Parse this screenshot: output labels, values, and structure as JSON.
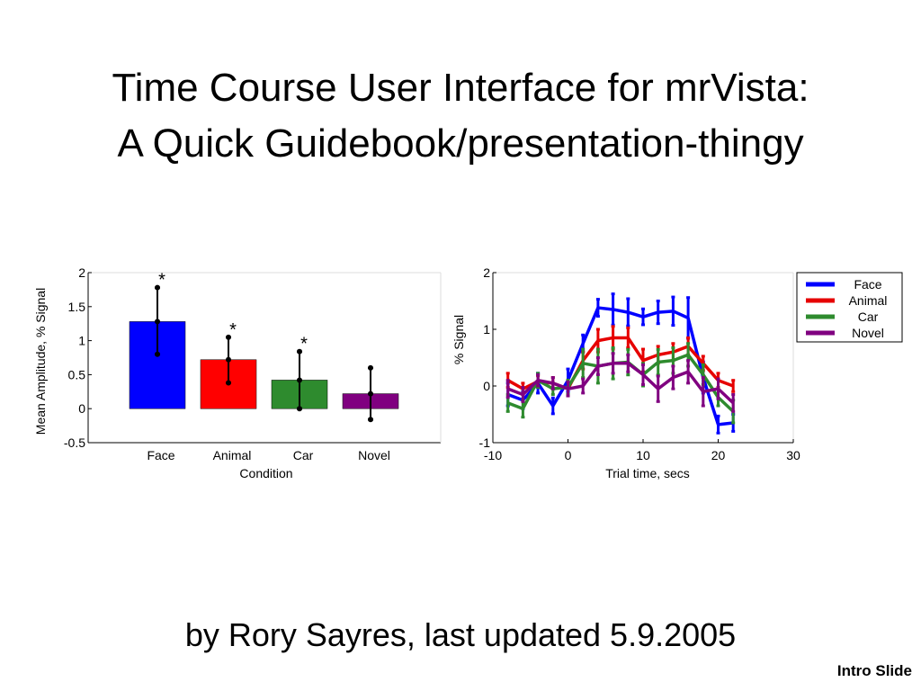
{
  "slide": {
    "title_line_1": "Time Course User Interface for mrVista:",
    "title_line_2": "A Quick Guidebook/presentation-thingy",
    "byline": "by Rory Sayres, last updated 5.9.2005",
    "label": "Intro Slide"
  },
  "chart_data": [
    {
      "type": "bar",
      "title": "",
      "xlabel": "Condition",
      "ylabel": "Mean Amplitude, % Signal",
      "ylim": [
        -0.5,
        2
      ],
      "yticks": [
        "2",
        "1.5",
        "1",
        "0.5",
        "0",
        "-0.5"
      ],
      "categories": [
        "Face",
        "Animal",
        "Car",
        "Novel"
      ],
      "values": [
        1.28,
        0.72,
        0.42,
        0.22
      ],
      "error_low": [
        0.8,
        0.38,
        0.0,
        -0.16
      ],
      "error_high": [
        1.78,
        1.05,
        0.84,
        0.6
      ],
      "significance": [
        "*",
        "*",
        "*",
        ""
      ],
      "colors": [
        "#0000ff",
        "#ff0000",
        "#2e8b2e",
        "#800080"
      ],
      "grid": false
    },
    {
      "type": "line",
      "title": "",
      "xlabel": "Trial time, secs",
      "ylabel": "% Signal",
      "xlim": [
        -10,
        30
      ],
      "ylim": [
        -1,
        2
      ],
      "xticks": [
        "-10",
        "0",
        "10",
        "20",
        "30"
      ],
      "yticks": [
        "2",
        "1",
        "0",
        "-1"
      ],
      "legend_position": "top-right",
      "x": [
        -8,
        -6,
        -4,
        -2,
        0,
        2,
        4,
        6,
        8,
        10,
        12,
        14,
        16,
        18,
        20,
        22
      ],
      "series": [
        {
          "name": "Face",
          "color": "#0000ff",
          "values": [
            -0.15,
            -0.25,
            0.05,
            -0.35,
            0.1,
            0.75,
            1.38,
            1.35,
            1.3,
            1.22,
            1.3,
            1.32,
            1.2,
            0.15,
            -0.68,
            -0.65
          ],
          "err": [
            0.4,
            0.3,
            0.35,
            0.28,
            0.4,
            0.3,
            0.3,
            0.55,
            0.48,
            0.28,
            0.4,
            0.5,
            0.72,
            0.55,
            0.3,
            0.3
          ]
        },
        {
          "name": "Animal",
          "color": "#e60000",
          "values": [
            0.1,
            -0.05,
            0.08,
            0.05,
            -0.05,
            0.45,
            0.8,
            0.85,
            0.85,
            0.45,
            0.55,
            0.6,
            0.7,
            0.4,
            0.1,
            0.0
          ],
          "err": [
            0.25,
            0.2,
            0.2,
            0.2,
            0.25,
            0.3,
            0.4,
            0.4,
            0.35,
            0.4,
            0.3,
            0.3,
            0.3,
            0.25,
            0.25,
            0.2
          ]
        },
        {
          "name": "Car",
          "color": "#2e8b2e",
          "values": [
            -0.3,
            -0.4,
            0.1,
            -0.05,
            -0.02,
            0.4,
            0.35,
            0.4,
            0.42,
            0.2,
            0.42,
            0.45,
            0.55,
            0.2,
            -0.2,
            -0.45
          ],
          "err": [
            0.3,
            0.3,
            0.25,
            0.2,
            0.25,
            0.5,
            0.6,
            0.55,
            0.45,
            0.4,
            0.45,
            0.45,
            0.4,
            0.35,
            0.3,
            0.4
          ]
        },
        {
          "name": "Novel",
          "color": "#800080",
          "values": [
            -0.05,
            -0.15,
            0.1,
            0.05,
            -0.05,
            0.0,
            0.35,
            0.4,
            0.4,
            0.2,
            -0.05,
            0.15,
            0.25,
            -0.1,
            -0.05,
            -0.3
          ],
          "err": [
            0.3,
            0.25,
            0.2,
            0.2,
            0.25,
            0.25,
            0.3,
            0.35,
            0.3,
            0.35,
            0.45,
            0.4,
            0.4,
            0.5,
            0.35,
            0.3
          ]
        }
      ],
      "grid": false
    }
  ]
}
